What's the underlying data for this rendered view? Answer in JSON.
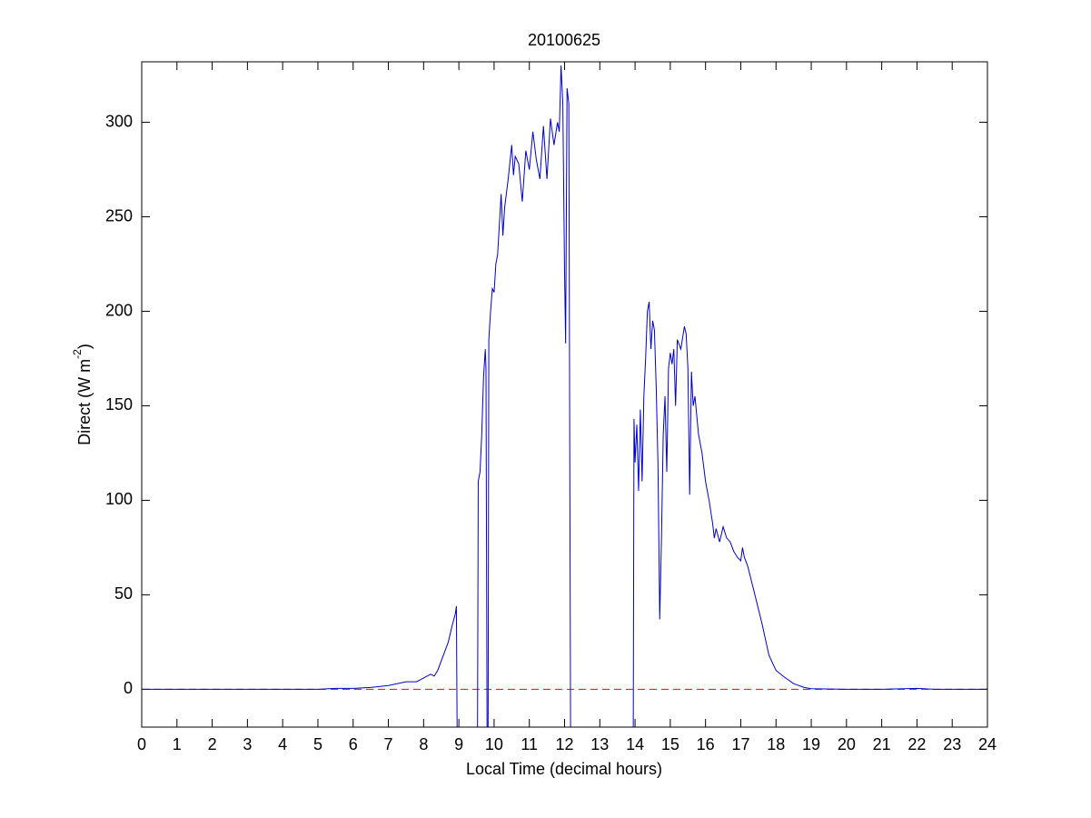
{
  "chart_data": {
    "type": "line",
    "title": "20100625",
    "xlabel": "Local Time (decimal hours)",
    "ylabel": {
      "text": "Direct (W m",
      "superscript": "-2",
      "suffix": ")"
    },
    "xlim": [
      0,
      24
    ],
    "ylim": [
      -20,
      332
    ],
    "xticks": [
      0,
      1,
      2,
      3,
      4,
      5,
      6,
      7,
      8,
      9,
      10,
      11,
      12,
      13,
      14,
      15,
      16,
      17,
      18,
      19,
      20,
      21,
      22,
      23,
      24
    ],
    "yticks": [
      0,
      50,
      100,
      150,
      200,
      250,
      300
    ],
    "grid": false,
    "hline": {
      "y": 0,
      "color": "#ff0000",
      "style": "dashed"
    },
    "series": [
      {
        "color": "#0000cc",
        "x": [
          0,
          1,
          2,
          3,
          4,
          5,
          5.5,
          6,
          6.5,
          7,
          7.5,
          7.8,
          8,
          8.2,
          8.3,
          8.4,
          8.5,
          8.6,
          8.7,
          8.8,
          8.9,
          8.93,
          8.95,
          9.53,
          9.55,
          9.6,
          9.65,
          9.7,
          9.75,
          9.77,
          9.8,
          9.83,
          9.85,
          9.9,
          9.95,
          10,
          10.05,
          10.1,
          10.2,
          10.25,
          10.3,
          10.4,
          10.5,
          10.55,
          10.6,
          10.7,
          10.8,
          10.9,
          11,
          11.1,
          11.2,
          11.3,
          11.4,
          11.5,
          11.6,
          11.7,
          11.8,
          11.85,
          11.9,
          11.95,
          12,
          12.03,
          12.07,
          12.12,
          12.17,
          13.95,
          13.97,
          14,
          14.05,
          14.1,
          14.15,
          14.2,
          14.25,
          14.3,
          14.35,
          14.4,
          14.45,
          14.5,
          14.55,
          14.6,
          14.65,
          14.7,
          14.75,
          14.8,
          14.85,
          14.9,
          14.95,
          15,
          15.05,
          15.1,
          15.15,
          15.2,
          15.3,
          15.4,
          15.45,
          15.5,
          15.55,
          15.6,
          15.65,
          15.7,
          15.8,
          15.9,
          16,
          16.1,
          16.2,
          16.25,
          16.3,
          16.4,
          16.5,
          16.6,
          16.7,
          16.8,
          16.9,
          17,
          17.05,
          17.1,
          17.2,
          17.4,
          17.6,
          17.8,
          18,
          18.2,
          18.5,
          18.8,
          19,
          20,
          21,
          22,
          22.5,
          23,
          24
        ],
        "values": [
          0,
          0,
          0,
          0,
          0,
          0,
          0.5,
          0.5,
          1,
          2,
          4,
          4,
          6,
          8,
          7,
          10,
          15,
          20,
          25,
          33,
          40,
          44,
          -20,
          -20,
          110,
          115,
          135,
          165,
          180,
          170,
          -20,
          -20,
          185,
          200,
          212,
          210,
          225,
          230,
          262,
          240,
          255,
          270,
          288,
          272,
          282,
          278,
          258,
          285,
          275,
          295,
          280,
          270,
          298,
          270,
          302,
          288,
          300,
          295,
          330,
          310,
          220,
          183,
          318,
          310,
          -20,
          -20,
          143,
          120,
          140,
          105,
          148,
          110,
          155,
          175,
          200,
          205,
          180,
          195,
          190,
          160,
          120,
          37,
          80,
          135,
          155,
          115,
          170,
          178,
          172,
          180,
          150,
          185,
          180,
          192,
          188,
          170,
          103,
          168,
          150,
          155,
          135,
          125,
          110,
          100,
          88,
          80,
          85,
          78,
          86,
          80,
          78,
          73,
          70,
          68,
          75,
          70,
          65,
          50,
          35,
          18,
          10,
          7,
          3,
          1,
          0.3,
          0,
          0,
          0.5,
          0,
          0,
          0
        ]
      }
    ]
  }
}
